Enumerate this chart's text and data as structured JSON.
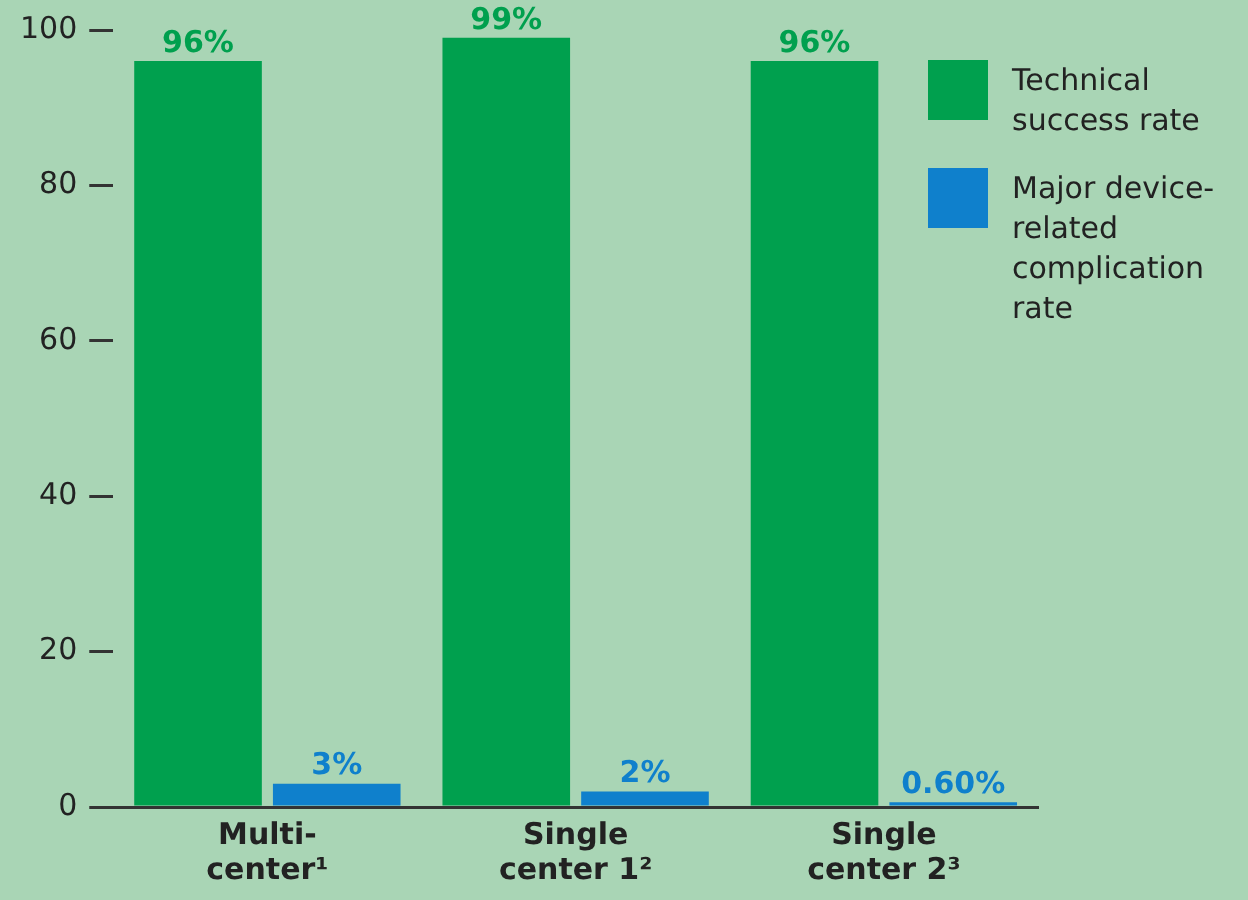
{
  "chart_data": {
    "type": "bar",
    "categories": [
      "Multi-center¹",
      "Single center 1²",
      "Single center 2³"
    ],
    "series": [
      {
        "name": "Technical success rate",
        "color": "#00a04e",
        "values": [
          96,
          99,
          96
        ],
        "value_labels": [
          "96%",
          "99%",
          "96%"
        ]
      },
      {
        "name": "Major device-related complication rate",
        "color": "#0f80cc",
        "values": [
          3,
          2,
          0.6
        ],
        "value_labels": [
          "3%",
          "2%",
          "0.60%"
        ]
      }
    ],
    "ylim": [
      0,
      100
    ],
    "yticks": [
      0,
      20,
      40,
      60,
      80,
      100
    ],
    "grid": false,
    "legend": "top right"
  }
}
